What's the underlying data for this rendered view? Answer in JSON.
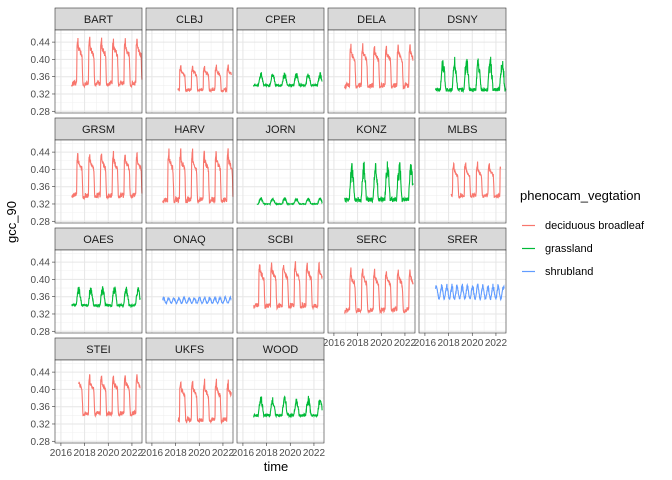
{
  "chart_data": {
    "type": "line",
    "title": "",
    "xlabel": "time",
    "ylabel": "gcc_90",
    "facet_grid": {
      "rows": 4,
      "cols": 5
    },
    "xlim": [
      2015.5,
      2022.85
    ],
    "ylim": [
      0.276,
      0.468
    ],
    "x_ticks": [
      2016,
      2018,
      2020,
      2022
    ],
    "x_tick_labels": [
      "2016",
      "2018",
      "2020",
      "2022"
    ],
    "y_ticks": [
      0.28,
      0.32,
      0.36,
      0.4,
      0.44
    ],
    "y_tick_labels": [
      "0.28",
      "0.32",
      "0.36",
      "0.40",
      "0.44"
    ],
    "grid": true,
    "legend": {
      "title": "phenocam_vegtation",
      "position": "right",
      "entries": [
        {
          "name": "deciduous broadleaf",
          "color": "#F8766D"
        },
        {
          "name": "grassland",
          "color": "#00BA38"
        },
        {
          "name": "shrubland",
          "color": "#619CFF"
        }
      ]
    },
    "panels": [
      {
        "site": "BART",
        "vegetation": "deciduous broadleaf",
        "start": 2016.9,
        "end": 2022.85,
        "base": 0.345,
        "peak": 0.45
      },
      {
        "site": "CLBJ",
        "vegetation": "deciduous broadleaf",
        "start": 2018.2,
        "end": 2022.7,
        "base": 0.33,
        "peak": 0.385
      },
      {
        "site": "CPER",
        "vegetation": "grassland",
        "start": 2016.9,
        "end": 2022.7,
        "base": 0.34,
        "peak": 0.37
      },
      {
        "site": "DELA",
        "vegetation": "deciduous broadleaf",
        "start": 2016.9,
        "end": 2022.7,
        "base": 0.34,
        "peak": 0.435
      },
      {
        "site": "DSNY",
        "vegetation": "grassland",
        "start": 2016.9,
        "end": 2022.85,
        "base": 0.33,
        "peak": 0.405
      },
      {
        "site": "GRSM",
        "vegetation": "deciduous broadleaf",
        "start": 2016.9,
        "end": 2022.85,
        "base": 0.34,
        "peak": 0.44
      },
      {
        "site": "HARV",
        "vegetation": "deciduous broadleaf",
        "start": 2016.9,
        "end": 2022.85,
        "base": 0.33,
        "peak": 0.445
      },
      {
        "site": "JORN",
        "vegetation": "grassland",
        "start": 2017.2,
        "end": 2022.7,
        "base": 0.32,
        "peak": 0.335
      },
      {
        "site": "KONZ",
        "vegetation": "grassland",
        "start": 2016.9,
        "end": 2022.7,
        "base": 0.33,
        "peak": 0.42
      },
      {
        "site": "MLBS",
        "vegetation": "deciduous broadleaf",
        "start": 2018.2,
        "end": 2022.4,
        "base": 0.34,
        "peak": 0.415
      },
      {
        "site": "OAES",
        "vegetation": "grassland",
        "start": 2016.9,
        "end": 2022.7,
        "base": 0.34,
        "peak": 0.385
      },
      {
        "site": "ONAQ",
        "vegetation": "shrubland",
        "start": 2016.9,
        "end": 2022.7,
        "base": 0.345,
        "peak": 0.36
      },
      {
        "site": "SCBI",
        "vegetation": "deciduous broadleaf",
        "start": 2016.9,
        "end": 2022.7,
        "base": 0.34,
        "peak": 0.44
      },
      {
        "site": "SERC",
        "vegetation": "deciduous broadleaf",
        "start": 2016.9,
        "end": 2022.7,
        "base": 0.33,
        "peak": 0.425
      },
      {
        "site": "SRER",
        "vegetation": "shrubland",
        "start": 2016.9,
        "end": 2022.7,
        "base": 0.355,
        "peak": 0.39
      },
      {
        "site": "STEI",
        "vegetation": "deciduous broadleaf",
        "start": 2017.5,
        "end": 2022.7,
        "base": 0.345,
        "peak": 0.435
      },
      {
        "site": "UKFS",
        "vegetation": "deciduous broadleaf",
        "start": 2018.2,
        "end": 2022.7,
        "base": 0.33,
        "peak": 0.42
      },
      {
        "site": "WOOD",
        "vegetation": "grassland",
        "start": 2016.9,
        "end": 2022.7,
        "base": 0.34,
        "peak": 0.385
      }
    ]
  }
}
